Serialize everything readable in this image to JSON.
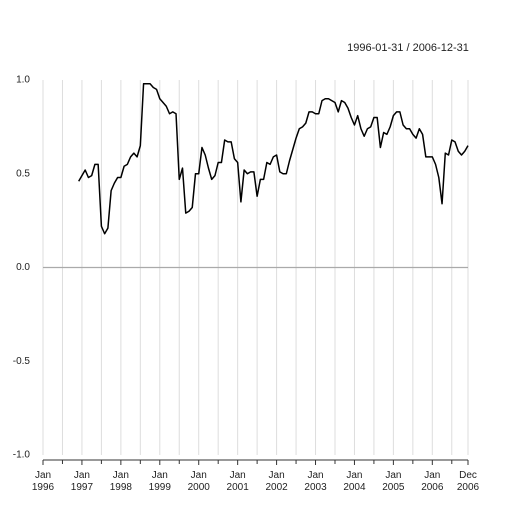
{
  "chart_data": {
    "type": "line",
    "title": "1996-01-31 / 2006-12-31",
    "x": [
      "1996-12",
      "1997-01",
      "1997-02",
      "1997-03",
      "1997-04",
      "1997-05",
      "1997-06",
      "1997-07",
      "1997-08",
      "1997-09",
      "1997-10",
      "1997-11",
      "1997-12",
      "1998-01",
      "1998-02",
      "1998-03",
      "1998-04",
      "1998-05",
      "1998-06",
      "1998-07",
      "1998-08",
      "1998-09",
      "1998-10",
      "1998-11",
      "1998-12",
      "1999-01",
      "1999-02",
      "1999-03",
      "1999-04",
      "1999-05",
      "1999-06",
      "1999-07",
      "1999-08",
      "1999-09",
      "1999-10",
      "1999-11",
      "1999-12",
      "2000-01",
      "2000-02",
      "2000-03",
      "2000-04",
      "2000-05",
      "2000-06",
      "2000-07",
      "2000-08",
      "2000-09",
      "2000-10",
      "2000-11",
      "2000-12",
      "2001-01",
      "2001-02",
      "2001-03",
      "2001-04",
      "2001-05",
      "2001-06",
      "2001-07",
      "2001-08",
      "2001-09",
      "2001-10",
      "2001-11",
      "2001-12",
      "2002-01",
      "2002-02",
      "2002-03",
      "2002-04",
      "2002-05",
      "2002-06",
      "2002-07",
      "2002-08",
      "2002-09",
      "2002-10",
      "2002-11",
      "2002-12",
      "2003-01",
      "2003-02",
      "2003-03",
      "2003-04",
      "2003-05",
      "2003-06",
      "2003-07",
      "2003-08",
      "2003-09",
      "2003-10",
      "2003-11",
      "2003-12",
      "2004-01",
      "2004-02",
      "2004-03",
      "2004-04",
      "2004-05",
      "2004-06",
      "2004-07",
      "2004-08",
      "2004-09",
      "2004-10",
      "2004-11",
      "2004-12",
      "2005-01",
      "2005-02",
      "2005-03",
      "2005-04",
      "2005-05",
      "2005-06",
      "2005-07",
      "2005-08",
      "2005-09",
      "2005-10",
      "2005-11",
      "2005-12",
      "2006-01",
      "2006-02",
      "2006-03",
      "2006-04",
      "2006-05",
      "2006-06",
      "2006-07",
      "2006-08",
      "2006-09",
      "2006-10",
      "2006-11",
      "2006-12"
    ],
    "series": [
      {
        "color": "#000000",
        "values": [
          0.46,
          0.49,
          0.52,
          0.48,
          0.49,
          0.55,
          0.55,
          0.22,
          0.18,
          0.21,
          0.41,
          0.45,
          0.48,
          0.48,
          0.54,
          0.55,
          0.59,
          0.61,
          0.59,
          0.65,
          0.98,
          0.98,
          0.98,
          0.96,
          0.95,
          0.9,
          0.88,
          0.86,
          0.82,
          0.83,
          0.82,
          0.47,
          0.53,
          0.29,
          0.3,
          0.32,
          0.5,
          0.5,
          0.64,
          0.6,
          0.53,
          0.47,
          0.49,
          0.56,
          0.56,
          0.68,
          0.67,
          0.67,
          0.58,
          0.56,
          0.35,
          0.52,
          0.5,
          0.51,
          0.51,
          0.38,
          0.47,
          0.47,
          0.56,
          0.55,
          0.59,
          0.6,
          0.51,
          0.5,
          0.5,
          0.57,
          0.63,
          0.69,
          0.74,
          0.75,
          0.77,
          0.83,
          0.83,
          0.82,
          0.82,
          0.89,
          0.9,
          0.9,
          0.89,
          0.88,
          0.83,
          0.89,
          0.88,
          0.85,
          0.8,
          0.76,
          0.81,
          0.74,
          0.7,
          0.74,
          0.75,
          0.8,
          0.8,
          0.64,
          0.72,
          0.71,
          0.75,
          0.81,
          0.83,
          0.83,
          0.76,
          0.74,
          0.74,
          0.71,
          0.69,
          0.74,
          0.71,
          0.59,
          0.59,
          0.59,
          0.55,
          0.48,
          0.34,
          0.61,
          0.6,
          0.68,
          0.67,
          0.62,
          0.6,
          0.62,
          0.65
        ]
      }
    ],
    "xlim": [
      "1996-01",
      "2006-12"
    ],
    "xticks": [
      {
        "value": "1996-01",
        "label": "Jan 1996"
      },
      {
        "value": "1997-01",
        "label": "Jan 1997"
      },
      {
        "value": "1998-01",
        "label": "Jan 1998"
      },
      {
        "value": "1999-01",
        "label": "Jan 1999"
      },
      {
        "value": "2000-01",
        "label": "Jan 2000"
      },
      {
        "value": "2001-01",
        "label": "Jan 2001"
      },
      {
        "value": "2002-01",
        "label": "Jan 2002"
      },
      {
        "value": "2003-01",
        "label": "Jan 2003"
      },
      {
        "value": "2004-01",
        "label": "Jan 2004"
      },
      {
        "value": "2005-01",
        "label": "Jan 2005"
      },
      {
        "value": "2006-01",
        "label": "Jan 2006"
      },
      {
        "value": "2006-12",
        "label": "Dec 2006"
      }
    ],
    "xminorticks": [
      "1996-07",
      "1997-07",
      "1998-07",
      "1999-07",
      "2000-07",
      "2001-07",
      "2002-07",
      "2003-07",
      "2004-07",
      "2005-07",
      "2006-07"
    ],
    "ylim": [
      -1,
      1
    ],
    "yticks": [
      {
        "value": -1,
        "label": "-1.0"
      },
      {
        "value": -0.5,
        "label": "-0.5"
      },
      {
        "value": 0,
        "label": "0.0"
      },
      {
        "value": 0.5,
        "label": "0.5"
      },
      {
        "value": 1,
        "label": "1.0"
      }
    ],
    "grid": true
  }
}
